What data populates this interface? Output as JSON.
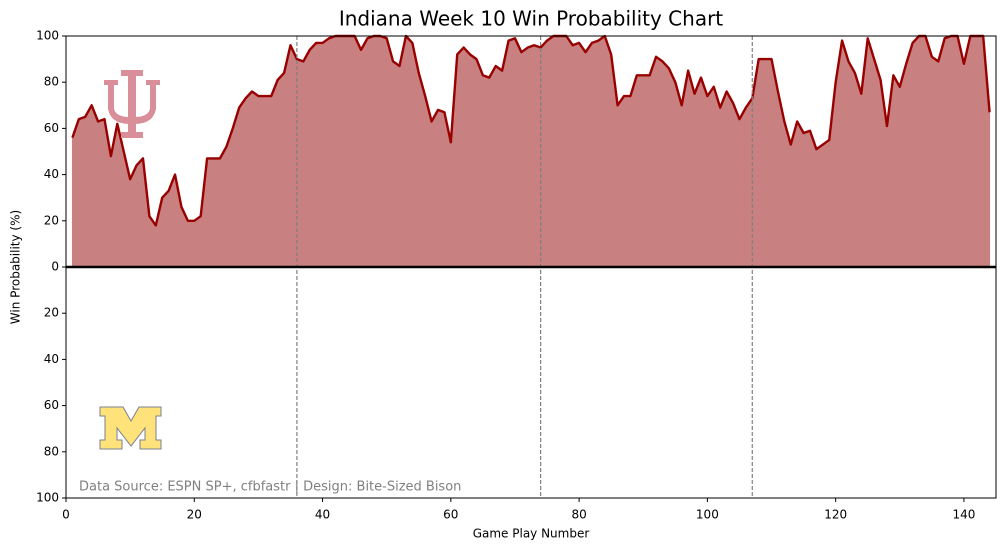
{
  "chart_data": {
    "type": "area",
    "title": "Indiana Week 10 Win Probability Chart",
    "xlabel": "Game Play Number",
    "ylabel": "Win Probability (%)",
    "annotation": "Data Source: ESPN SP+, cfbfastr | Design: Bite-Sized Bison",
    "line_color": "#990000",
    "fill_color": "#c98080",
    "xlim": [
      0,
      145
    ],
    "ylim": [
      -100,
      100
    ],
    "xticks": [
      0,
      20,
      40,
      60,
      80,
      100,
      120,
      140
    ],
    "yticks": [
      {
        "value": -100,
        "label": "100"
      },
      {
        "value": -80,
        "label": "80"
      },
      {
        "value": -60,
        "label": "60"
      },
      {
        "value": -40,
        "label": "40"
      },
      {
        "value": -20,
        "label": "20"
      },
      0,
      20,
      40,
      60,
      80,
      100
    ],
    "vlines": [
      36,
      74,
      107
    ],
    "x": [
      1,
      2,
      3,
      4,
      5,
      6,
      7,
      8,
      9,
      10,
      11,
      12,
      13,
      14,
      15,
      16,
      17,
      18,
      19,
      20,
      21,
      22,
      23,
      24,
      25,
      26,
      27,
      28,
      29,
      30,
      31,
      32,
      33,
      34,
      35,
      36,
      37,
      38,
      39,
      40,
      41,
      42,
      43,
      44,
      45,
      46,
      47,
      48,
      49,
      50,
      51,
      52,
      53,
      54,
      55,
      56,
      57,
      58,
      59,
      60,
      61,
      62,
      63,
      64,
      65,
      66,
      67,
      68,
      69,
      70,
      71,
      72,
      73,
      74,
      75,
      76,
      77,
      78,
      79,
      80,
      81,
      82,
      83,
      84,
      85,
      86,
      87,
      88,
      89,
      90,
      91,
      92,
      93,
      94,
      95,
      96,
      97,
      98,
      99,
      100,
      101,
      102,
      103,
      104,
      105,
      106,
      107,
      108,
      109,
      110,
      111,
      112,
      113,
      114,
      115,
      116,
      117,
      118,
      119,
      120,
      121,
      122,
      123,
      124,
      125,
      126,
      127,
      128,
      129,
      130,
      131,
      132,
      133,
      134,
      135,
      136,
      137,
      138,
      139,
      140,
      141,
      142,
      143,
      144
    ],
    "values": [
      56,
      64,
      65,
      70,
      63,
      64,
      48,
      62,
      50,
      38,
      44,
      47,
      22,
      18,
      30,
      33,
      40,
      26,
      20,
      20,
      22,
      47,
      47,
      47,
      52,
      60,
      69,
      73,
      76,
      74,
      74,
      74,
      81,
      84,
      96,
      90,
      89,
      94,
      97,
      97,
      99,
      100,
      100,
      100,
      100,
      94,
      99,
      100,
      100,
      99,
      89,
      87,
      100,
      97,
      84,
      74,
      63,
      68,
      67,
      54,
      92,
      95,
      92,
      90,
      83,
      82,
      87,
      85,
      98,
      99,
      93,
      95,
      96,
      95,
      98,
      100,
      100,
      100,
      96,
      97,
      93,
      97,
      98,
      100,
      92,
      70,
      74,
      74,
      83,
      83,
      83,
      91,
      89,
      86,
      80,
      70,
      85,
      75,
      82,
      74,
      78,
      69,
      76,
      71,
      64,
      69,
      73,
      90,
      90,
      90,
      76,
      63,
      53,
      63,
      58,
      59,
      51,
      53,
      55,
      80,
      98,
      89,
      84,
      75,
      99,
      90,
      81,
      61,
      83,
      78,
      88,
      97,
      100,
      100,
      91,
      89,
      99,
      100,
      100,
      88,
      100,
      100,
      100,
      67
    ]
  }
}
